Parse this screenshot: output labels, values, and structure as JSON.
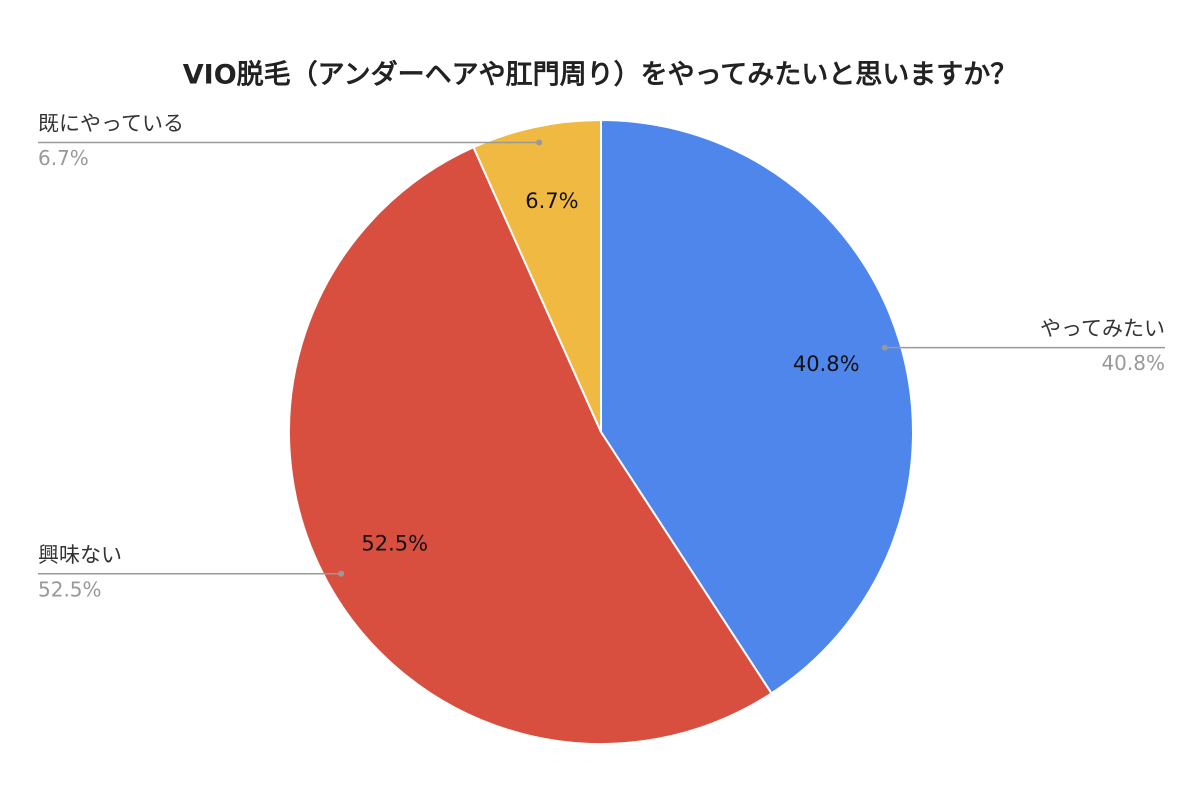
{
  "chart_data": {
    "type": "pie",
    "title": "VIO脱毛（アンダーヘアや肛門周り）をやってみたいと思いますか？",
    "categories": [
      "やってみたい",
      "興味ない",
      "既にやっている"
    ],
    "values": [
      40.8,
      52.5,
      6.7
    ],
    "value_labels": [
      "40.8%",
      "52.5%",
      "6.7%"
    ],
    "colors": [
      "#4f86ec",
      "#d94f3f",
      "#f0b942"
    ]
  }
}
